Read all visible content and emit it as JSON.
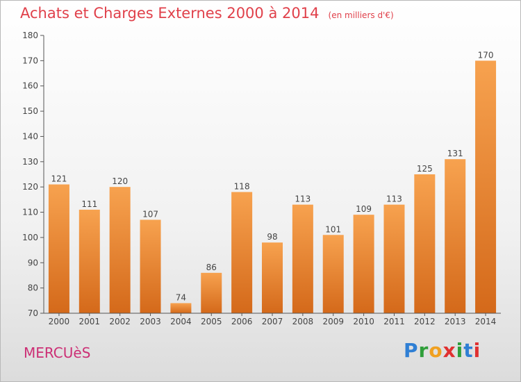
{
  "chart_data": {
    "type": "bar",
    "title": "Achats et Charges Externes 2000 à 2014",
    "subtitle": "(en milliers d'€)",
    "categories": [
      "2000",
      "2001",
      "2002",
      "2003",
      "2004",
      "2005",
      "2006",
      "2007",
      "2008",
      "2009",
      "2010",
      "2011",
      "2012",
      "2013",
      "2014"
    ],
    "values": [
      121,
      111,
      120,
      107,
      74,
      86,
      118,
      98,
      113,
      101,
      109,
      113,
      125,
      131,
      170
    ],
    "ylim": [
      70,
      180
    ],
    "yticks": [
      70,
      80,
      90,
      100,
      110,
      120,
      130,
      140,
      150,
      160,
      170,
      180
    ],
    "grid": false,
    "bar_color_top": "#f7a24f",
    "bar_color_bottom": "#d4691a"
  },
  "footer": {
    "commune": "MERCUèS",
    "logo": {
      "letters": [
        "P",
        "r",
        "o",
        "x",
        "i",
        "t",
        "i"
      ],
      "colors": [
        "#2f7fd4",
        "#2f9e3a",
        "#f0a020",
        "#e03030",
        "#2f9e3a",
        "#2f7fd4",
        "#e03030"
      ]
    }
  }
}
